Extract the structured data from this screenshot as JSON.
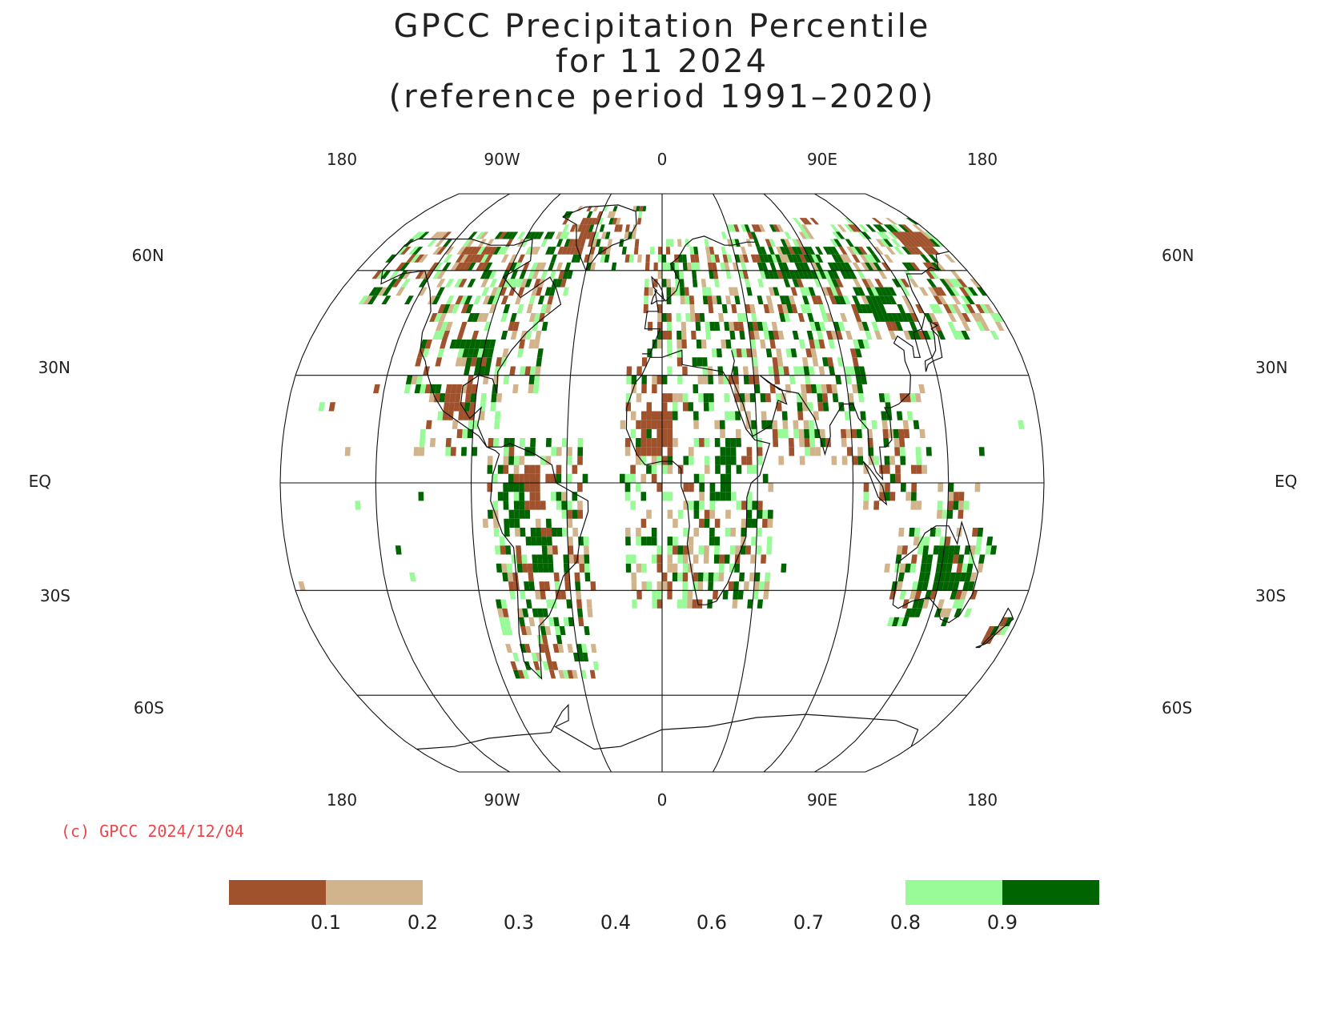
{
  "title": {
    "line1": "GPCC Precipitation Percentile",
    "line2": "for 11 2024",
    "line3": "(reference period 1991–2020)"
  },
  "lon_labels": [
    "180",
    "90W",
    "0",
    "90E",
    "180"
  ],
  "lat_labels": {
    "left": [
      "60N",
      "30N",
      "EQ",
      "30S",
      "60S"
    ],
    "right": [
      "60N",
      "30N",
      "EQ",
      "30S",
      "60S"
    ]
  },
  "credit": "(c) GPCC 2024/12/04",
  "legend": {
    "ticks": [
      "0.1",
      "0.2",
      "0.3",
      "0.4",
      "0.6",
      "0.7",
      "0.8",
      "0.9"
    ],
    "colors": {
      "below_0_1": "#a0522d",
      "0_1_to_0_2": "#d2b48c",
      "0_8_to_0_9": "#98fb98",
      "above_0_9": "#006400"
    }
  },
  "map": {
    "projection": "Robinson",
    "central_longitude": 0,
    "meridians": [
      -180,
      -135,
      -90,
      -45,
      0,
      45,
      90,
      135,
      180
    ],
    "parallels": [
      60,
      30,
      0,
      -30,
      -60
    ],
    "category_colors": {
      "very_dry": "#a0522d",
      "dry": "#d2b48c",
      "wet": "#98fb98",
      "very_wet": "#006400"
    },
    "anomaly_regions": [
      {
        "cat": "very_wet",
        "lon": [
          -110,
          -70
        ],
        "lat": [
          70,
          80
        ]
      },
      {
        "cat": "very_dry",
        "lon": [
          -60,
          -45
        ],
        "lat": [
          64,
          78
        ]
      },
      {
        "cat": "very_dry",
        "lon": [
          -125,
          -105
        ],
        "lat": [
          60,
          68
        ]
      },
      {
        "cat": "very_wet",
        "lon": [
          -100,
          -85
        ],
        "lat": [
          30,
          40
        ]
      },
      {
        "cat": "very_dry",
        "lon": [
          -105,
          -90
        ],
        "lat": [
          18,
          28
        ]
      },
      {
        "cat": "very_wet",
        "lon": [
          -75,
          -65
        ],
        "lat": [
          -12,
          0
        ]
      },
      {
        "cat": "very_wet",
        "lon": [
          -62,
          -52
        ],
        "lat": [
          -25,
          -12
        ]
      },
      {
        "cat": "very_dry",
        "lon": [
          -70,
          -58
        ],
        "lat": [
          -8,
          5
        ]
      },
      {
        "cat": "very_wet",
        "lon": [
          25,
          35
        ],
        "lat": [
          -5,
          10
        ]
      },
      {
        "cat": "very_dry",
        "lon": [
          -10,
          5
        ],
        "lat": [
          8,
          20
        ]
      },
      {
        "cat": "very_wet",
        "lon": [
          60,
          110
        ],
        "lat": [
          58,
          68
        ]
      },
      {
        "cat": "very_wet",
        "lon": [
          105,
          130
        ],
        "lat": [
          45,
          55
        ]
      },
      {
        "cat": "very_wet",
        "lon": [
          125,
          150
        ],
        "lat": [
          -30,
          -18
        ]
      },
      {
        "cat": "very_dry",
        "lon": [
          155,
          175
        ],
        "lat": [
          66,
          72
        ]
      }
    ]
  }
}
